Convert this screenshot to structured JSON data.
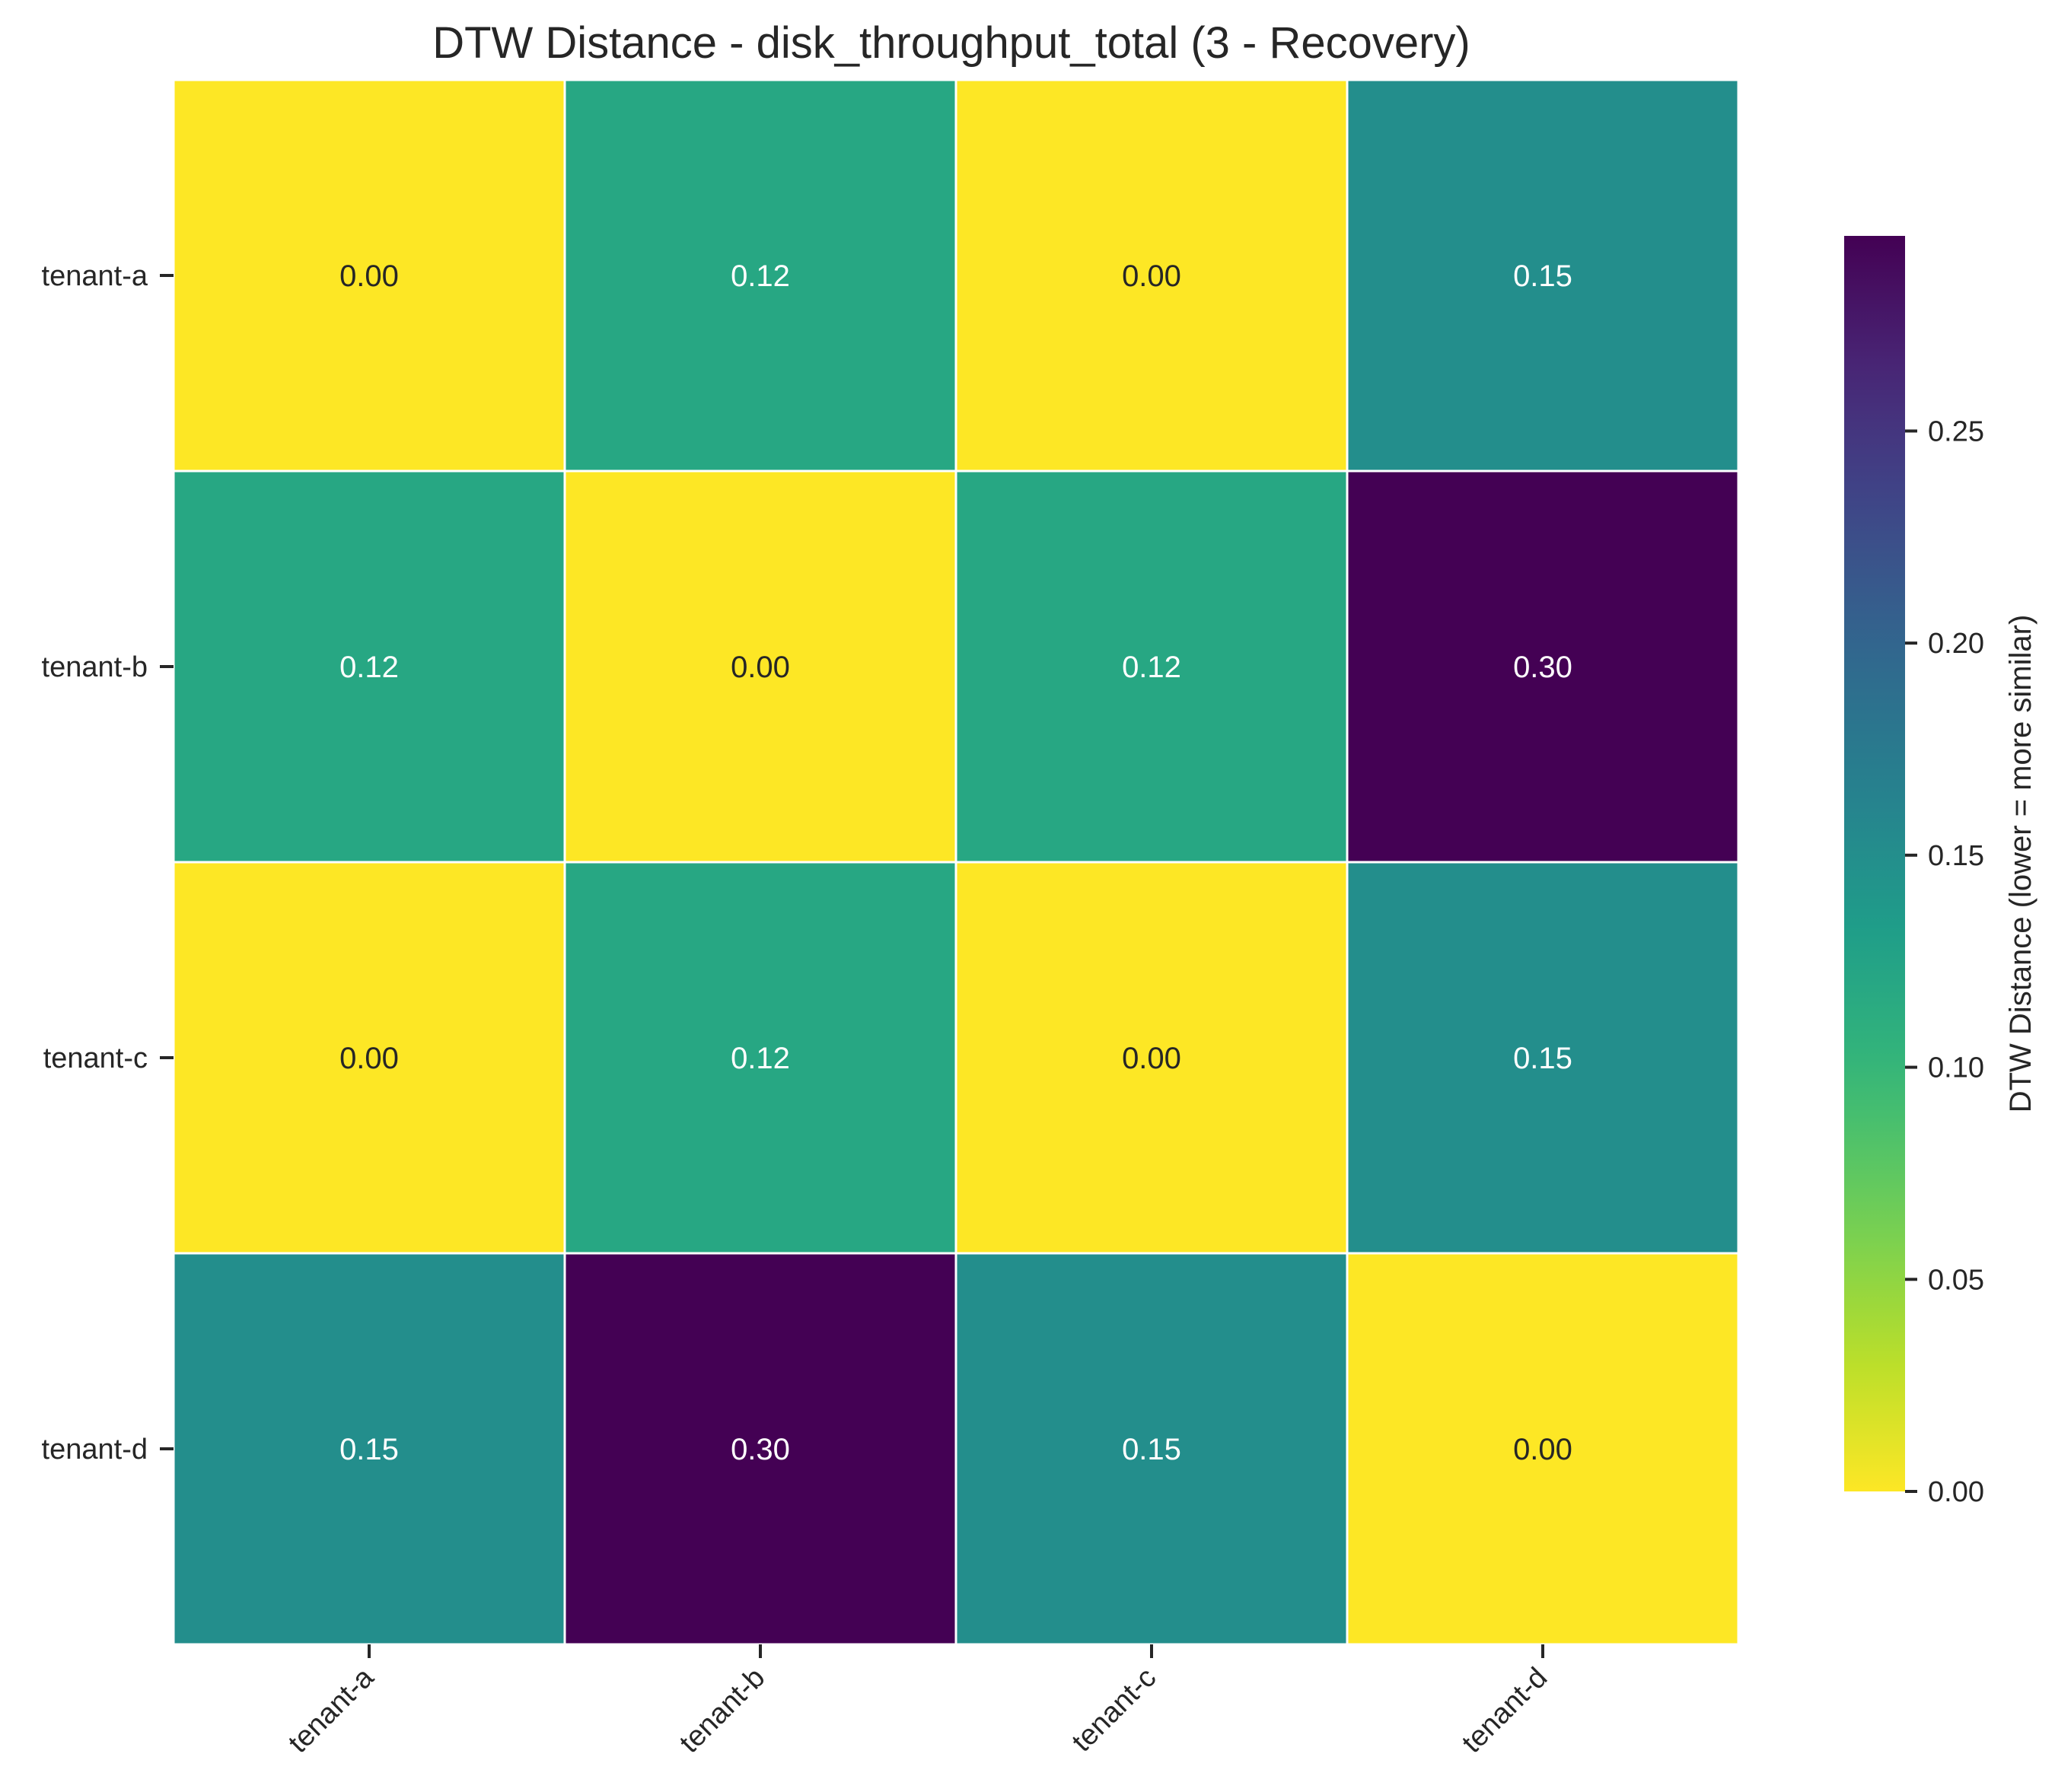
{
  "chart_data": {
    "type": "heatmap",
    "title": "DTW Distance - disk_throughput_total (3 - Recovery)",
    "row_labels": [
      "tenant-a",
      "tenant-b",
      "tenant-c",
      "tenant-d"
    ],
    "col_labels": [
      "tenant-a",
      "tenant-b",
      "tenant-c",
      "tenant-d"
    ],
    "values": [
      [
        0.0,
        0.12,
        0.0,
        0.15
      ],
      [
        0.12,
        0.0,
        0.12,
        0.3
      ],
      [
        0.0,
        0.12,
        0.0,
        0.15
      ],
      [
        0.15,
        0.3,
        0.15,
        0.0
      ]
    ],
    "cell_labels": [
      [
        "0.00",
        "0.12",
        "0.00",
        "0.15"
      ],
      [
        "0.12",
        "0.00",
        "0.12",
        "0.30"
      ],
      [
        "0.00",
        "0.12",
        "0.00",
        "0.15"
      ],
      [
        "0.15",
        "0.30",
        "0.15",
        "0.00"
      ]
    ],
    "colormap": "viridis_r",
    "colorbar": {
      "label": "DTW Distance (lower = more similar)",
      "range": [
        0.0,
        0.296
      ],
      "ticks": [
        0.0,
        0.05,
        0.1,
        0.15,
        0.2,
        0.25
      ],
      "tick_labels": [
        "0.00",
        "0.05",
        "0.10",
        "0.15",
        "0.20",
        "0.25"
      ]
    },
    "grid": false,
    "cell_borders": "#ffffff",
    "text_colors": {
      "light": "#ffffff",
      "dark": "#262626"
    }
  }
}
